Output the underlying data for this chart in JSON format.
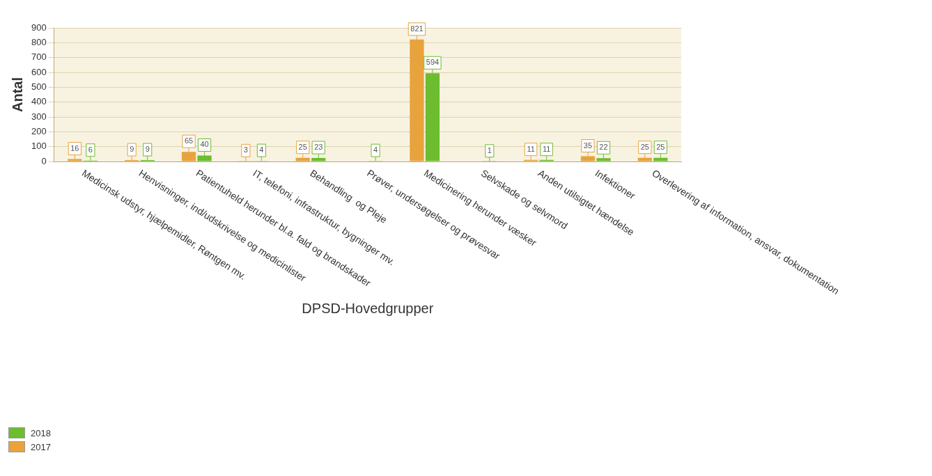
{
  "chart_data": {
    "type": "bar",
    "xlabel": "DPSD-Hovedgrupper",
    "ylabel": "Antal",
    "categories": [
      "Medicinsk udstyr, hjælpemidler, Røntgen mv.",
      "Henvisninger, ind/udskrivelse og medicinlister",
      "Patientuheld herunder bl.a. fald og brandskader",
      "IT, telefoni, infrastruktur, bygninger mv.",
      "Behandling  og Pleje",
      "Prøver, undersøgelser og prøvesvar",
      "Medicinering herunder væsker",
      "Selvskade og selvmord",
      "Anden utilsigtet hændelse",
      "Infektioner",
      "Overlevering af information, ansvar, dokumentation"
    ],
    "series": [
      {
        "name": "2017",
        "color": "#e8a33c",
        "values": [
          16,
          9,
          65,
          3,
          25,
          null,
          821,
          null,
          11,
          35,
          25
        ]
      },
      {
        "name": "2018",
        "color": "#6cbd2f",
        "values": [
          6,
          9,
          40,
          4,
          23,
          4,
          594,
          1,
          11,
          22,
          25
        ]
      }
    ],
    "ylim": [
      0,
      900
    ],
    "yticks": [
      0,
      100,
      200,
      300,
      400,
      500,
      600,
      700,
      800,
      900
    ],
    "grid": "y",
    "legend": "bottom left",
    "data_labels": true
  }
}
